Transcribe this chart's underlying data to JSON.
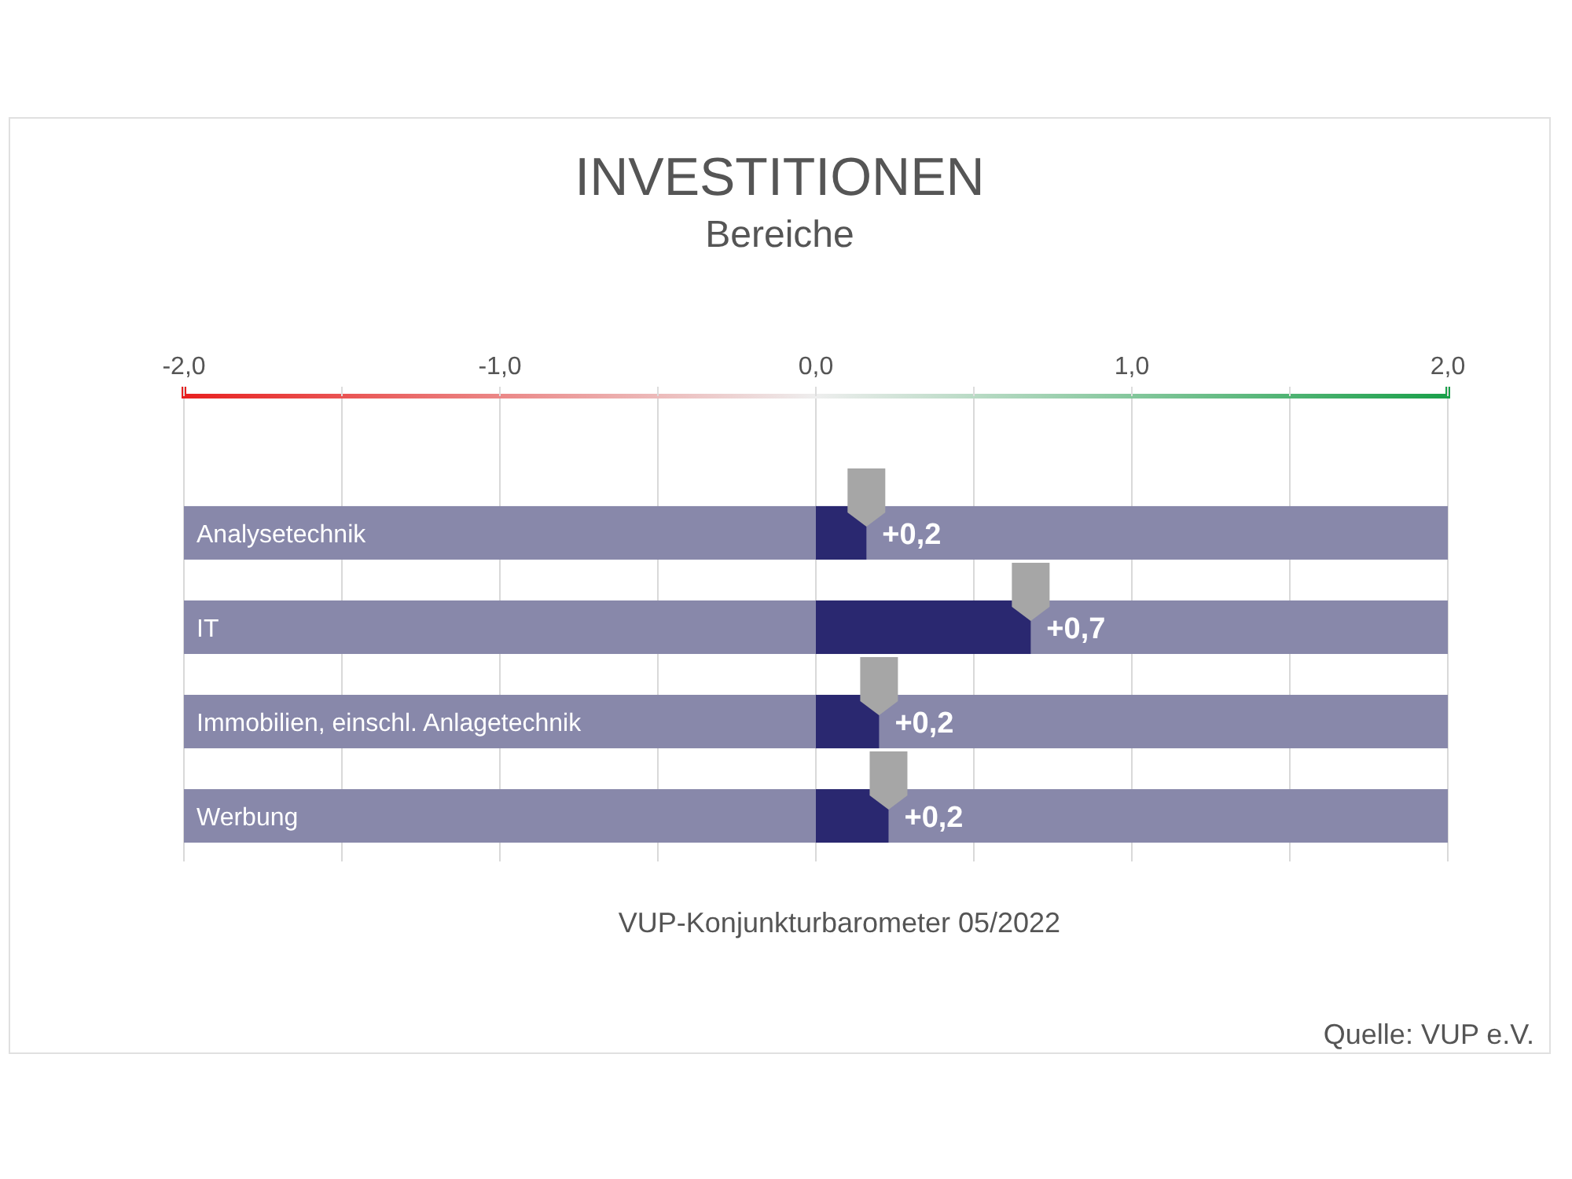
{
  "chart_data": {
    "type": "bar",
    "orientation": "horizontal",
    "title": "INVESTITIONEN",
    "subtitle": "Bereiche",
    "categories": [
      "Analysetechnik",
      "IT",
      "Immobilien, einschl. Anlagetechnik",
      "Werbung"
    ],
    "series": [
      {
        "color": "#8888aa",
        "base": [
          -2,
          -2,
          -2,
          -2
        ],
        "values": [
          4,
          4,
          4,
          4
        ]
      },
      {
        "color": "#2a2870",
        "values": [
          0.16,
          0.68,
          0.2,
          0.23
        ],
        "value_labels": [
          "+0,2",
          "+0,7",
          "+0,2",
          "+0,2"
        ]
      }
    ],
    "xlim": [
      -2,
      2
    ],
    "xticks": [
      {
        "value": -2,
        "label": "-2,0"
      },
      {
        "value": -1.5,
        "label": null
      },
      {
        "value": -1,
        "label": "-1,0"
      },
      {
        "value": -0.5,
        "label": null
      },
      {
        "value": 0,
        "label": "0,0"
      },
      {
        "value": 0.5,
        "label": null
      },
      {
        "value": 1,
        "label": "1,0"
      },
      {
        "value": 1.5,
        "label": null
      },
      {
        "value": 2,
        "label": "2,0"
      }
    ],
    "grid": "x",
    "annotations": [
      "VUP-Konjunkturbarometer 05/2022",
      "Quelle: VUP e.V."
    ]
  }
}
